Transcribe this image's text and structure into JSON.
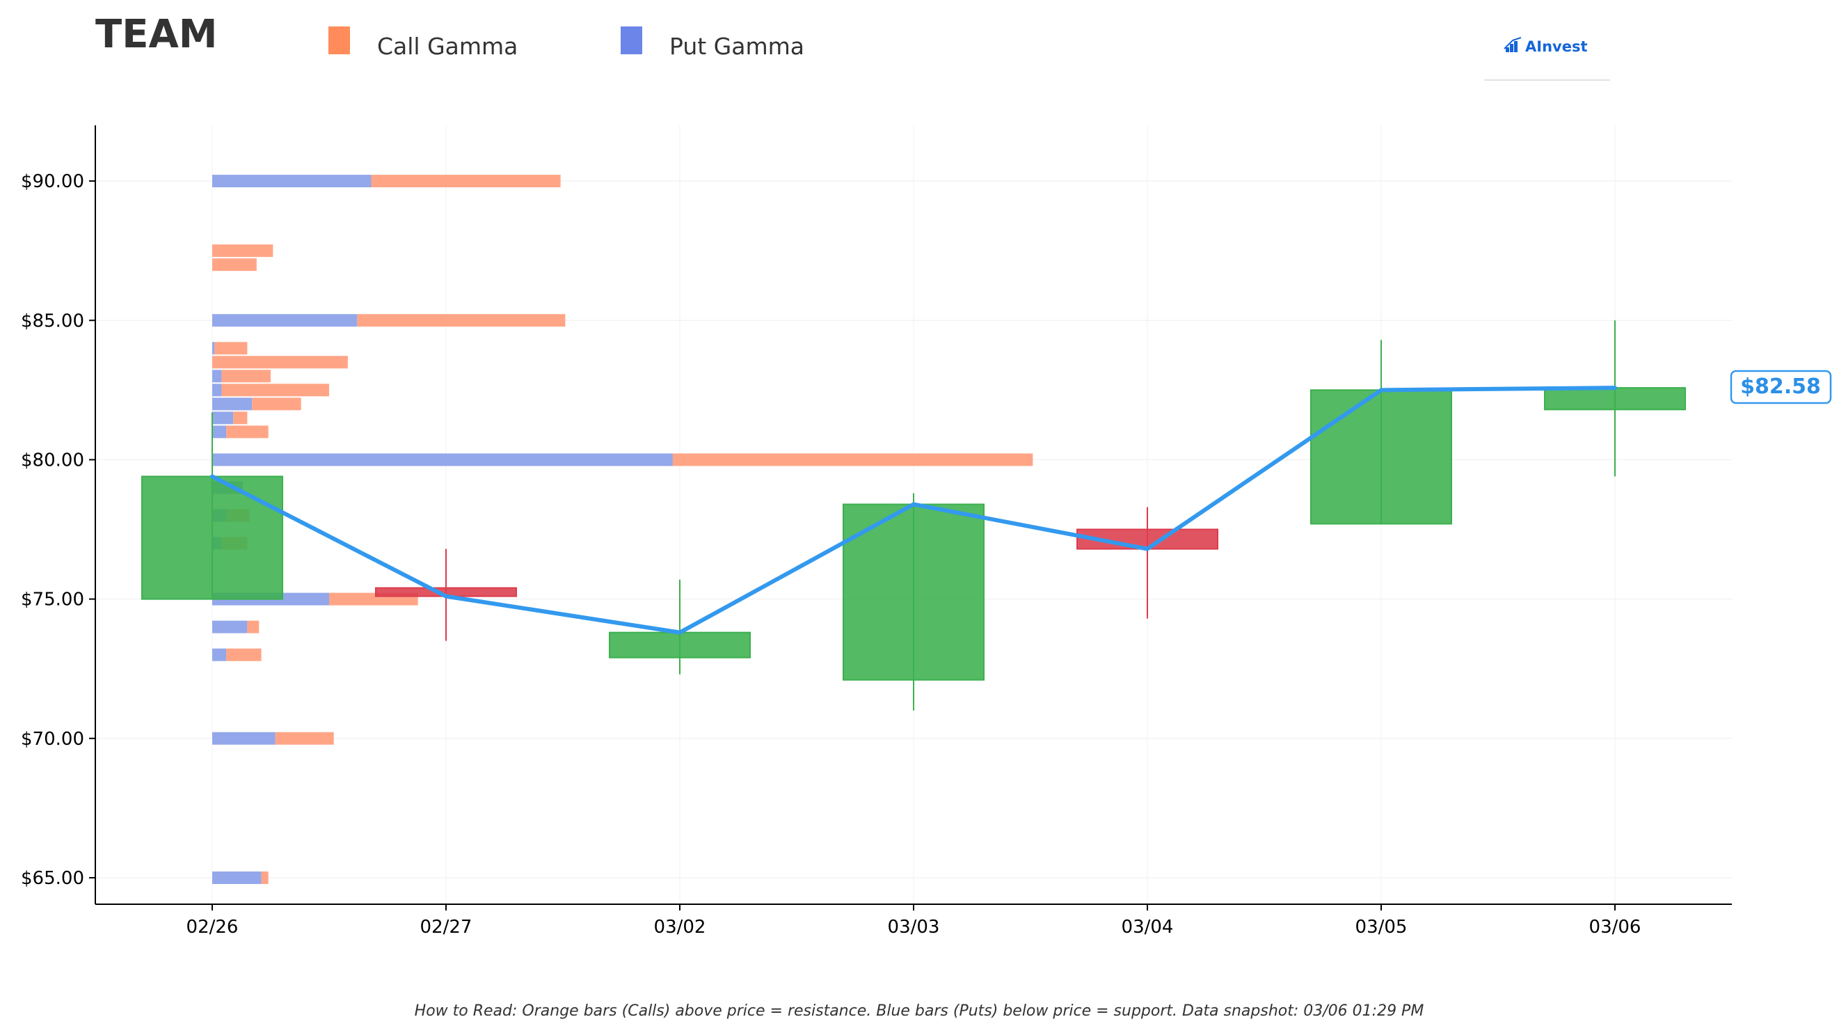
{
  "title": "TEAM",
  "legend": [
    {
      "label": "Call Gamma",
      "color": "#ff8c5a"
    },
    {
      "label": "Put Gamma",
      "color": "#6b86e8"
    }
  ],
  "logo": {
    "text": "AInvest",
    "icon": "chart-bars-icon"
  },
  "footer": "How to Read: Orange bars (Calls) above price = resistance. Blue bars (Puts) below price = support. Data snapshot: 03/06 01:29 PM",
  "current_price_label": "$82.58",
  "colors": {
    "up": "#3cb04e",
    "down": "#dc3c4c",
    "line": "#3399ee",
    "call": "#ffa07f",
    "put": "#8da2ea"
  },
  "chart_data": {
    "type": "candlestick",
    "title": "TEAM",
    "xlabel": "",
    "ylabel": "",
    "ylim": [
      64.05,
      92.0
    ],
    "yticks": [
      65,
      70,
      75,
      80,
      85,
      90
    ],
    "ytick_labels": [
      "$65.00",
      "$70.00",
      "$75.00",
      "$80.00",
      "$85.00",
      "$90.00"
    ],
    "categories": [
      "02/26",
      "02/27",
      "03/02",
      "03/03",
      "03/04",
      "03/05",
      "03/06"
    ],
    "candles": [
      {
        "date": "02/26",
        "open": 75.0,
        "high": 81.7,
        "low": 75.0,
        "close": 79.4
      },
      {
        "date": "02/27",
        "open": 75.4,
        "high": 76.8,
        "low": 73.5,
        "close": 75.1
      },
      {
        "date": "03/02",
        "open": 72.9,
        "high": 75.7,
        "low": 72.3,
        "close": 73.8
      },
      {
        "date": "03/03",
        "open": 72.1,
        "high": 78.8,
        "low": 71.0,
        "close": 78.4
      },
      {
        "date": "03/04",
        "open": 77.5,
        "high": 78.3,
        "low": 74.3,
        "close": 76.8
      },
      {
        "date": "03/05",
        "open": 77.7,
        "high": 84.3,
        "low": 77.7,
        "close": 82.5
      },
      {
        "date": "03/06",
        "open": 81.8,
        "high": 85.0,
        "low": 79.4,
        "close": 82.58
      }
    ],
    "close_line": [
      79.4,
      75.1,
      73.8,
      78.4,
      76.8,
      82.5,
      82.58
    ],
    "gamma_levels": [
      {
        "strike": 90.0,
        "put": 0.68,
        "call": 0.81
      },
      {
        "strike": 87.5,
        "call": 0.26
      },
      {
        "strike": 87.0,
        "call": 0.19
      },
      {
        "strike": 85.0,
        "put": 0.62,
        "call": 0.89
      },
      {
        "strike": 84.0,
        "put": 0.01,
        "call": 0.14
      },
      {
        "strike": 83.5,
        "call": 0.58
      },
      {
        "strike": 83.0,
        "put": 0.04,
        "call": 0.21
      },
      {
        "strike": 82.5,
        "put": 0.04,
        "call": 0.46
      },
      {
        "strike": 82.0,
        "put": 0.17,
        "call": 0.21
      },
      {
        "strike": 81.5,
        "put": 0.09,
        "call": 0.06
      },
      {
        "strike": 81.0,
        "put": 0.06,
        "call": 0.18
      },
      {
        "strike": 80.0,
        "put": 1.97,
        "call": 1.54
      },
      {
        "strike": 79.0,
        "put": 0.13
      },
      {
        "strike": 78.0,
        "put": 0.06,
        "call": 0.1
      },
      {
        "strike": 77.0,
        "put": 0.04,
        "call": 0.11
      },
      {
        "strike": 75.0,
        "put": 0.5,
        "call": 0.38
      },
      {
        "strike": 74.0,
        "put": 0.15,
        "call": 0.05
      },
      {
        "strike": 73.0,
        "put": 0.06,
        "call": 0.15
      },
      {
        "strike": 70.0,
        "put": 0.27,
        "call": 0.25
      },
      {
        "strike": 65.0,
        "put": 0.21,
        "call": 0.03
      }
    ]
  }
}
